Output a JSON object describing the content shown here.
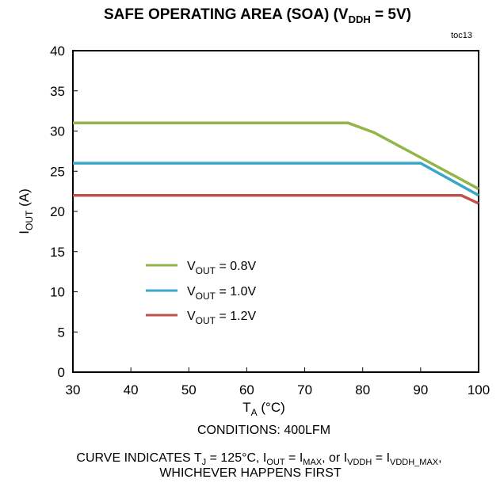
{
  "chart_data": {
    "type": "line",
    "title": {
      "prefix": "SAFE OPERATING AREA (SOA) (V",
      "sub": "DDH",
      "suffix": " = 5V)"
    },
    "figure_tag": "toc13",
    "xlabel": {
      "main": "T",
      "sub": "A",
      "rest": " (°C)"
    },
    "ylabel": {
      "main": "I",
      "sub": "OUT",
      "rest": " (A)"
    },
    "xlim": [
      30,
      100
    ],
    "ylim": [
      0,
      40
    ],
    "xticks": [
      "30",
      "40",
      "50",
      "60",
      "70",
      "80",
      "90",
      "100"
    ],
    "yticks": [
      "0",
      "5",
      "10",
      "15",
      "20",
      "25",
      "30",
      "35",
      "40"
    ],
    "grid": false,
    "legend_position": "center-left",
    "series": [
      {
        "name": {
          "main": "V",
          "sub": "OUT",
          "rest": " = 0.8V"
        },
        "color": "#92b547",
        "x": [
          30,
          77.5,
          82,
          90,
          100
        ],
        "y": [
          31,
          31,
          29.8,
          26.7,
          22.8
        ]
      },
      {
        "name": {
          "main": "V",
          "sub": "OUT",
          "rest": " = 1.0V"
        },
        "color": "#3ba7c8",
        "x": [
          30,
          90,
          100
        ],
        "y": [
          26,
          26,
          22
        ]
      },
      {
        "name": {
          "main": "V",
          "sub": "OUT",
          "rest": " = 1.2V"
        },
        "color": "#c0504d",
        "x": [
          30,
          97,
          100
        ],
        "y": [
          22,
          22,
          21
        ]
      }
    ],
    "notes": {
      "line1": "CONDITIONS:  400LFM",
      "line2": {
        "p1": "CURVE INDICATES T",
        "s1": "J",
        "p2": " = 125°C, I",
        "s2": "OUT",
        "p3": " = I",
        "s3": "MAX",
        "p4": ", or I",
        "s4": "VDDH",
        "p5": " = I",
        "s5": "VDDH_MAX",
        "p6": ","
      },
      "line3": "WHICHEVER HAPPENS FIRST"
    }
  }
}
